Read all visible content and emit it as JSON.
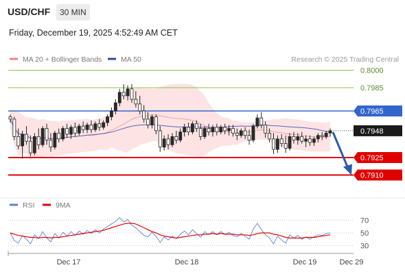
{
  "header": {
    "symbol": "USD/CHF",
    "timeframe": "30 MIN",
    "datetime": "Friday, December 19, 2025 4:52:49 AM CET"
  },
  "colors": {
    "candle_up": "#2a2a2a",
    "candle_down": "#ffffff",
    "bollinger_fill": "#fde0e0",
    "ma20": "#f4a2a2",
    "ma50": "#5566bb",
    "resistance_green": "#8cc34a",
    "resistance_blue": "#3366cc",
    "support_red": "#e00000",
    "arrow": "#2a5caa",
    "rsi": "#5b7fd6",
    "rsi_ma": "#e00000"
  },
  "chart_data": [
    {
      "type": "candlestick",
      "legend": [
        {
          "name": "MA 20 + Bollinger Bands",
          "color": "#f08080"
        },
        {
          "name": "MA 50",
          "color": "#2b4a8f"
        }
      ],
      "watermark": "Research © 2025 Trading Central",
      "x_tick_labels": [
        "Dec 17",
        "Dec 18",
        "Dec 19",
        "Dec 29"
      ],
      "ylim": [
        0.7895,
        0.8005
      ],
      "levels": [
        {
          "value": 0.8,
          "label": "0.8000",
          "style": "green-line"
        },
        {
          "value": 0.7985,
          "label": "0.7985",
          "style": "green-line"
        },
        {
          "value": 0.7965,
          "label": "0.7965",
          "style": "blue-line"
        },
        {
          "value": 0.7948,
          "label": "0.7948",
          "style": "current-price"
        },
        {
          "value": 0.7925,
          "label": "0.7925",
          "style": "red-line"
        },
        {
          "value": 0.791,
          "label": "0.7910",
          "style": "red-line"
        }
      ],
      "current_price": 0.7948,
      "forecast_target": 0.791,
      "candles": [
        [
          0.796,
          0.7962,
          0.7955,
          0.7958
        ],
        [
          0.7958,
          0.796,
          0.794,
          0.7943
        ],
        [
          0.7943,
          0.795,
          0.7932,
          0.7935
        ],
        [
          0.7935,
          0.7948,
          0.7924,
          0.7945
        ],
        [
          0.7945,
          0.7952,
          0.7936,
          0.7939
        ],
        [
          0.7939,
          0.7944,
          0.7926,
          0.7929
        ],
        [
          0.7929,
          0.7946,
          0.7927,
          0.7943
        ],
        [
          0.7943,
          0.795,
          0.7932,
          0.7936
        ],
        [
          0.7936,
          0.7952,
          0.7934,
          0.795
        ],
        [
          0.795,
          0.7954,
          0.7936,
          0.794
        ],
        [
          0.794,
          0.7946,
          0.793,
          0.7934
        ],
        [
          0.7934,
          0.7948,
          0.7932,
          0.7946
        ],
        [
          0.7946,
          0.795,
          0.7938,
          0.7941
        ],
        [
          0.7941,
          0.7952,
          0.7939,
          0.795
        ],
        [
          0.795,
          0.7954,
          0.7942,
          0.7945
        ],
        [
          0.7945,
          0.7953,
          0.7941,
          0.7951
        ],
        [
          0.7951,
          0.7955,
          0.7943,
          0.7946
        ],
        [
          0.7946,
          0.7954,
          0.7944,
          0.7952
        ],
        [
          0.7952,
          0.7956,
          0.7946,
          0.7949
        ],
        [
          0.7949,
          0.7955,
          0.7946,
          0.7953
        ],
        [
          0.7953,
          0.7957,
          0.7946,
          0.7949
        ],
        [
          0.7949,
          0.7956,
          0.7947,
          0.7954
        ],
        [
          0.7954,
          0.7958,
          0.7948,
          0.7951
        ],
        [
          0.7951,
          0.7957,
          0.7949,
          0.7955
        ],
        [
          0.7955,
          0.7962,
          0.7952,
          0.796
        ],
        [
          0.796,
          0.7968,
          0.7957,
          0.7965
        ],
        [
          0.7965,
          0.7975,
          0.7962,
          0.7972
        ],
        [
          0.7972,
          0.7984,
          0.7969,
          0.7981
        ],
        [
          0.7981,
          0.7988,
          0.7975,
          0.7978
        ],
        [
          0.7978,
          0.7987,
          0.7974,
          0.7984
        ],
        [
          0.7984,
          0.7988,
          0.7972,
          0.7975
        ],
        [
          0.7975,
          0.7982,
          0.7968,
          0.7971
        ],
        [
          0.7971,
          0.7978,
          0.7962,
          0.7965
        ],
        [
          0.7965,
          0.797,
          0.7955,
          0.7958
        ],
        [
          0.7958,
          0.7964,
          0.795,
          0.7953
        ],
        [
          0.7953,
          0.7962,
          0.795,
          0.796
        ],
        [
          0.796,
          0.7962,
          0.7945,
          0.7948
        ],
        [
          0.7948,
          0.7952,
          0.793,
          0.7934
        ],
        [
          0.7934,
          0.7944,
          0.7931,
          0.7941
        ],
        [
          0.7941,
          0.7945,
          0.7932,
          0.7936
        ],
        [
          0.7936,
          0.7946,
          0.7934,
          0.7943
        ],
        [
          0.7943,
          0.7948,
          0.7937,
          0.794
        ],
        [
          0.794,
          0.795,
          0.7938,
          0.7947
        ],
        [
          0.7947,
          0.7954,
          0.7943,
          0.7951
        ],
        [
          0.7951,
          0.7955,
          0.7944,
          0.7947
        ],
        [
          0.7947,
          0.7956,
          0.7945,
          0.7954
        ],
        [
          0.7954,
          0.7957,
          0.7947,
          0.795
        ],
        [
          0.795,
          0.7954,
          0.794,
          0.7943
        ],
        [
          0.7943,
          0.7952,
          0.7941,
          0.795
        ],
        [
          0.795,
          0.7954,
          0.7944,
          0.7947
        ],
        [
          0.7947,
          0.7953,
          0.7943,
          0.7951
        ],
        [
          0.7951,
          0.7954,
          0.7944,
          0.7947
        ],
        [
          0.7947,
          0.7953,
          0.7945,
          0.7951
        ],
        [
          0.7951,
          0.7954,
          0.7945,
          0.7948
        ],
        [
          0.7948,
          0.7953,
          0.7944,
          0.795
        ],
        [
          0.795,
          0.7953,
          0.7943,
          0.7946
        ],
        [
          0.7946,
          0.795,
          0.794,
          0.7944
        ],
        [
          0.7944,
          0.795,
          0.7942,
          0.7948
        ],
        [
          0.7948,
          0.7951,
          0.7941,
          0.7944
        ],
        [
          0.7944,
          0.7949,
          0.7936,
          0.794
        ],
        [
          0.794,
          0.7954,
          0.7938,
          0.7952
        ],
        [
          0.7952,
          0.7962,
          0.795,
          0.7959
        ],
        [
          0.7959,
          0.7964,
          0.795,
          0.7953
        ],
        [
          0.7953,
          0.7956,
          0.7942,
          0.7946
        ],
        [
          0.7946,
          0.795,
          0.7938,
          0.7941
        ],
        [
          0.7941,
          0.7946,
          0.7928,
          0.7932
        ],
        [
          0.7932,
          0.7944,
          0.7929,
          0.7941
        ],
        [
          0.7941,
          0.7945,
          0.7934,
          0.7937
        ],
        [
          0.7937,
          0.7944,
          0.7929,
          0.7933
        ],
        [
          0.7933,
          0.7946,
          0.7931,
          0.7943
        ],
        [
          0.7943,
          0.7947,
          0.7937,
          0.794
        ],
        [
          0.794,
          0.7946,
          0.7936,
          0.7943
        ],
        [
          0.7943,
          0.7947,
          0.7937,
          0.7939
        ],
        [
          0.7939,
          0.7944,
          0.7934,
          0.7941
        ],
        [
          0.7941,
          0.7944,
          0.7935,
          0.7938
        ],
        [
          0.7938,
          0.7943,
          0.7935,
          0.7941
        ],
        [
          0.7941,
          0.7946,
          0.7938,
          0.7944
        ],
        [
          0.7944,
          0.7947,
          0.794,
          0.7943
        ],
        [
          0.7943,
          0.7948,
          0.7941,
          0.7946
        ],
        [
          0.7946,
          0.795,
          0.7943,
          0.7948
        ]
      ]
    },
    {
      "type": "line",
      "legend": [
        {
          "name": "RSI",
          "color": "#5b7fd6"
        },
        {
          "name": "9MA",
          "color": "#e00000"
        }
      ],
      "y_ticks": [
        70,
        50,
        30
      ],
      "ylim": [
        20,
        80
      ],
      "series": [
        {
          "name": "RSI",
          "values": [
            50,
            38,
            34,
            46,
            40,
            33,
            47,
            41,
            52,
            42,
            36,
            49,
            42,
            51,
            45,
            52,
            46,
            53,
            48,
            54,
            49,
            55,
            50,
            56,
            60,
            64,
            68,
            74,
            67,
            71,
            62,
            58,
            52,
            46,
            44,
            51,
            45,
            35,
            44,
            39,
            45,
            41,
            48,
            53,
            47,
            55,
            49,
            43,
            52,
            47,
            52,
            47,
            52,
            48,
            51,
            46,
            44,
            49,
            45,
            40,
            56,
            65,
            55,
            47,
            42,
            33,
            45,
            39,
            34,
            47,
            42,
            46,
            40,
            44,
            40,
            44,
            47,
            46,
            49,
            50
          ]
        },
        {
          "name": "9MA",
          "values": [
            50,
            48,
            46,
            45,
            44,
            43,
            43,
            42,
            43,
            43,
            42,
            43,
            43,
            44,
            45,
            46,
            47,
            48,
            49,
            50,
            51,
            52,
            53,
            54,
            56,
            58,
            60,
            62,
            64,
            65,
            65,
            64,
            61,
            58,
            55,
            52,
            50,
            47,
            45,
            44,
            43,
            42,
            43,
            44,
            45,
            46,
            47,
            47,
            48,
            48,
            49,
            48,
            49,
            48,
            48,
            48,
            47,
            47,
            47,
            46,
            47,
            49,
            50,
            50,
            50,
            48,
            47,
            45,
            43,
            42,
            42,
            42,
            42,
            43,
            43,
            43,
            44,
            45,
            46,
            47
          ]
        }
      ]
    }
  ]
}
